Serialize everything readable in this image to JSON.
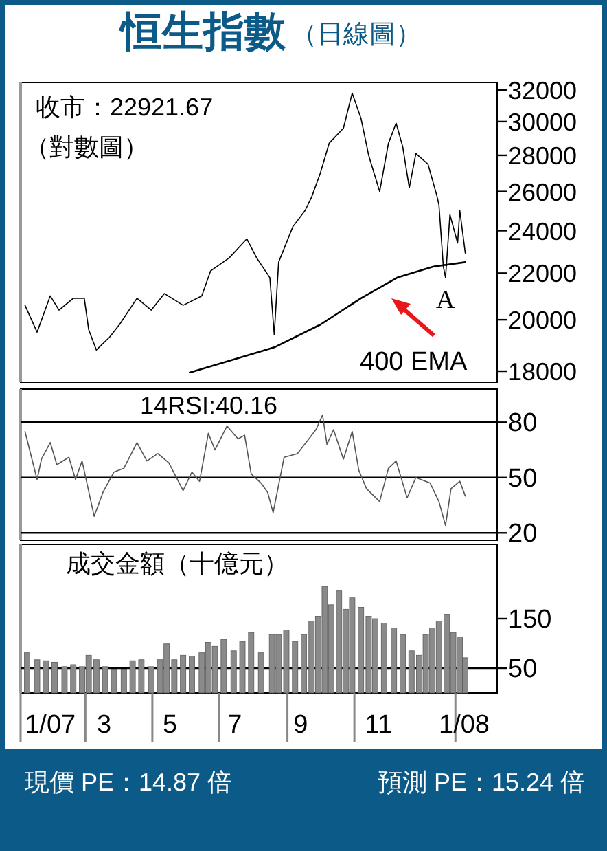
{
  "chart_data": [
    {
      "type": "line",
      "title": "恒生指數",
      "subtitle": "（日線圖）",
      "annotations": [
        "收市：22921.67",
        "（對數圖）",
        {
          "text": "A",
          "x": "2008-01-23",
          "y": 21800
        },
        "現價 PE：14.87 倍",
        "預測 PE：15.24 倍"
      ],
      "log": "y",
      "xlim": [
        "2007-01-01",
        "2008-03-10"
      ],
      "ylim": [
        17600,
        32500
      ],
      "yticks": [
        18000,
        20000,
        22000,
        24000,
        26000,
        28000,
        30000,
        32000
      ],
      "tick_labels": "y",
      "series": [
        {
          "color": "#000000",
          "x": [
            "2007-01-05",
            "2007-01-16",
            "2007-01-28",
            "2007-02-05",
            "2007-02-18",
            "2007-02-28",
            "2007-03-04",
            "2007-03-11",
            "2007-03-23",
            "2007-04-01",
            "2007-04-17",
            "2007-04-30",
            "2007-05-12",
            "2007-05-29",
            "2007-06-15",
            "2007-06-23",
            "2007-07-10",
            "2007-07-26",
            "2007-08-04",
            "2007-08-16",
            "2007-08-20",
            "2007-08-24",
            "2007-09-06",
            "2007-09-17",
            "2007-09-23",
            "2007-10-01",
            "2007-10-09",
            "2007-10-22",
            "2007-10-30",
            "2007-11-07",
            "2007-11-14",
            "2007-11-24",
            "2007-12-02",
            "2007-12-09",
            "2007-12-15",
            "2007-12-21",
            "2007-12-27",
            "2008-01-07",
            "2008-01-15",
            "2008-01-17",
            "2008-01-21",
            "2008-01-23",
            "2008-01-27",
            "2008-02-03",
            "2008-02-05",
            "2008-02-10"
          ],
          "values": [
            20600,
            19500,
            21000,
            20400,
            20900,
            20900,
            19600,
            18800,
            19300,
            19800,
            20900,
            20400,
            21100,
            20600,
            21000,
            22100,
            22700,
            23600,
            22700,
            21800,
            19400,
            22500,
            24200,
            25000,
            25700,
            27000,
            28700,
            29600,
            31800,
            30200,
            28000,
            26000,
            28700,
            29900,
            28500,
            26200,
            28100,
            27500,
            25800,
            25300,
            22300,
            21800,
            24800,
            23400,
            25000,
            22921.67
          ]
        },
        {
          "name": "400 EMA",
          "color": "#000000",
          "x": [
            "2007-06-04",
            "2007-08-20",
            "2007-10-01",
            "2007-11-07",
            "2007-12-10",
            "2008-01-12",
            "2008-02-10"
          ],
          "values": [
            17950,
            18900,
            19800,
            20900,
            21800,
            22300,
            22500
          ]
        }
      ]
    },
    {
      "type": "line",
      "title": "14RSI:40.16",
      "xlim": [
        "2007-01-01",
        "2008-03-10"
      ],
      "ylim": [
        16,
        98
      ],
      "yticks": [
        20,
        50,
        80
      ],
      "tick_labels": "y",
      "ref_lines": [
        {
          "axis": "y",
          "value": 80
        },
        {
          "axis": "y",
          "value": 50
        },
        {
          "axis": "y",
          "value": 20
        }
      ],
      "series": [
        {
          "color": "#555555",
          "x": [
            "2007-01-05",
            "2007-01-16",
            "2007-01-20",
            "2007-01-28",
            "2007-02-03",
            "2007-02-14",
            "2007-02-20",
            "2007-02-26",
            "2007-03-09",
            "2007-03-17",
            "2007-03-27",
            "2007-04-05",
            "2007-04-17",
            "2007-04-26",
            "2007-05-06",
            "2007-05-16",
            "2007-05-29",
            "2007-06-06",
            "2007-06-13",
            "2007-06-21",
            "2007-06-27",
            "2007-07-08",
            "2007-07-18",
            "2007-07-24",
            "2007-07-30",
            "2007-08-08",
            "2007-08-14",
            "2007-08-19",
            "2007-08-29",
            "2007-09-10",
            "2007-09-18",
            "2007-09-27",
            "2007-10-03",
            "2007-10-07",
            "2007-10-13",
            "2007-10-22",
            "2007-10-30",
            "2007-11-05",
            "2007-11-12",
            "2007-11-24",
            "2007-12-02",
            "2007-12-09",
            "2007-12-19",
            "2007-12-27",
            "2008-01-09",
            "2008-01-17",
            "2008-01-23",
            "2008-01-28",
            "2008-02-05",
            "2008-02-10"
          ],
          "values": [
            75,
            49,
            60,
            69,
            57,
            61,
            49,
            59,
            29,
            42,
            53,
            55,
            69,
            59,
            63,
            58,
            43,
            53,
            48,
            74,
            65,
            78,
            71,
            73,
            52,
            47,
            42,
            31,
            61,
            63,
            69,
            76,
            84,
            68,
            76,
            60,
            75,
            54,
            44,
            37,
            55,
            59,
            39,
            50,
            47,
            37,
            24,
            44,
            48,
            40
          ]
        }
      ]
    },
    {
      "type": "bar",
      "title": "成交金額（十億元）",
      "xlim": [
        "2007-01-01",
        "2008-03-10"
      ],
      "ylim": [
        0,
        300
      ],
      "yticks": [
        50,
        150
      ],
      "xticks": [
        {
          "value": "2007-01-28",
          "label": "1/07"
        },
        {
          "value": "2007-03-18",
          "label": "3"
        },
        {
          "value": "2007-05-17",
          "label": "5"
        },
        {
          "value": "2007-07-15",
          "label": "7"
        },
        {
          "value": "2007-09-13",
          "label": "9"
        },
        {
          "value": "2007-11-23",
          "label": "11"
        },
        {
          "value": "2008-02-09",
          "label": "1/08"
        }
      ],
      "ref_lines": [
        {
          "axis": "y",
          "value": 50
        }
      ],
      "series": [
        {
          "color": "#8a8a8a",
          "x": [
            "2007-01-07",
            "2007-01-16",
            "2007-01-24",
            "2007-02-01",
            "2007-02-10",
            "2007-02-18",
            "2007-02-26",
            "2007-03-04",
            "2007-03-11",
            "2007-03-19",
            "2007-03-27",
            "2007-04-05",
            "2007-04-13",
            "2007-04-21",
            "2007-04-30",
            "2007-05-08",
            "2007-05-14",
            "2007-05-21",
            "2007-05-29",
            "2007-06-06",
            "2007-06-15",
            "2007-06-21",
            "2007-06-27",
            "2007-07-05",
            "2007-07-14",
            "2007-07-22",
            "2007-07-30",
            "2007-08-08",
            "2007-08-18",
            "2007-08-24",
            "2007-08-31",
            "2007-09-08",
            "2007-09-16",
            "2007-09-23",
            "2007-09-29",
            "2007-10-05",
            "2007-10-11",
            "2007-10-18",
            "2007-10-24",
            "2007-10-30",
            "2007-11-07",
            "2007-11-14",
            "2007-11-20",
            "2007-11-28",
            "2007-12-07",
            "2007-12-15",
            "2007-12-23",
            "2007-12-30",
            "2008-01-05",
            "2008-01-11",
            "2008-01-17",
            "2008-01-24",
            "2008-01-30",
            "2008-02-05",
            "2008-02-10"
          ],
          "values": [
            81,
            67,
            65,
            62,
            53,
            57,
            53,
            76,
            67,
            53,
            48,
            48,
            65,
            67,
            53,
            67,
            99,
            67,
            76,
            74,
            81,
            102,
            94,
            108,
            85,
            104,
            122,
            81,
            118,
            118,
            127,
            104,
            118,
            145,
            155,
            215,
            178,
            206,
            169,
            192,
            173,
            155,
            150,
            141,
            131,
            118,
            85,
            76,
            118,
            131,
            145,
            159,
            122,
            113,
            71
          ]
        }
      ]
    }
  ]
}
